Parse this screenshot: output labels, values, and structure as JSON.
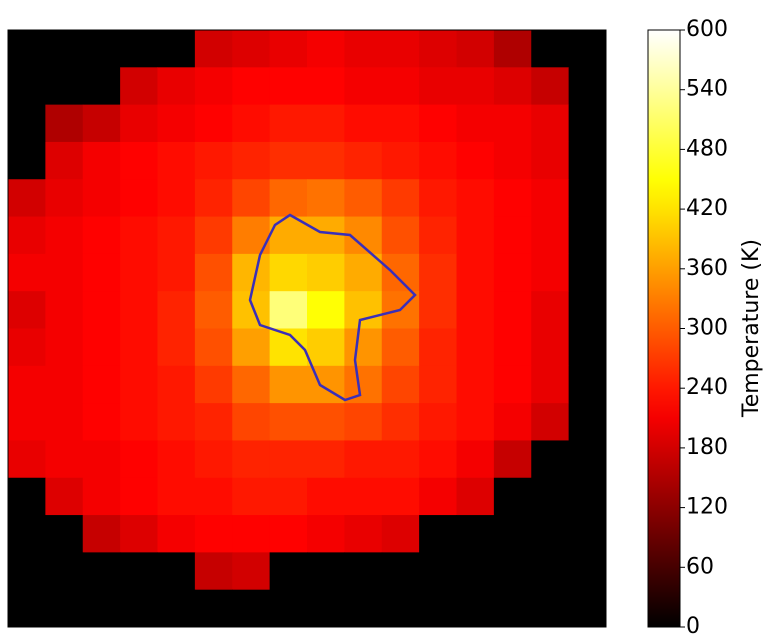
{
  "chart_data": {
    "type": "heatmap",
    "colormap": "hot",
    "colorbar_label": "Temperature (K)",
    "clim": [
      0,
      600
    ],
    "cticks": [
      0,
      60,
      120,
      180,
      240,
      300,
      360,
      420,
      480,
      540,
      600
    ],
    "z": [
      [
        0,
        0,
        0,
        0,
        0,
        180,
        190,
        200,
        210,
        200,
        200,
        190,
        180,
        150,
        0,
        0
      ],
      [
        0,
        0,
        0,
        180,
        200,
        210,
        220,
        220,
        220,
        210,
        210,
        200,
        200,
        190,
        170,
        0
      ],
      [
        0,
        150,
        170,
        200,
        210,
        220,
        230,
        240,
        240,
        230,
        230,
        220,
        210,
        210,
        200,
        0
      ],
      [
        0,
        190,
        210,
        220,
        230,
        240,
        250,
        260,
        260,
        250,
        240,
        230,
        220,
        210,
        200,
        0
      ],
      [
        180,
        200,
        210,
        220,
        230,
        250,
        280,
        310,
        320,
        300,
        270,
        240,
        230,
        220,
        210,
        0
      ],
      [
        200,
        210,
        220,
        230,
        240,
        270,
        330,
        370,
        370,
        340,
        290,
        250,
        230,
        220,
        210,
        0
      ],
      [
        210,
        210,
        220,
        230,
        240,
        290,
        380,
        410,
        400,
        370,
        310,
        260,
        230,
        220,
        210,
        0
      ],
      [
        190,
        210,
        220,
        230,
        250,
        300,
        390,
        520,
        450,
        390,
        320,
        260,
        230,
        220,
        200,
        0
      ],
      [
        200,
        210,
        220,
        230,
        250,
        290,
        360,
        420,
        400,
        350,
        300,
        250,
        230,
        220,
        200,
        0
      ],
      [
        210,
        210,
        220,
        230,
        240,
        270,
        310,
        350,
        350,
        320,
        280,
        250,
        230,
        220,
        200,
        0
      ],
      [
        210,
        210,
        220,
        230,
        240,
        250,
        280,
        290,
        290,
        280,
        260,
        240,
        230,
        210,
        180,
        0
      ],
      [
        200,
        210,
        210,
        220,
        230,
        240,
        250,
        250,
        250,
        240,
        240,
        230,
        210,
        170,
        0,
        0
      ],
      [
        0,
        190,
        210,
        220,
        230,
        230,
        240,
        240,
        230,
        230,
        230,
        210,
        190,
        0,
        0,
        0
      ],
      [
        0,
        0,
        170,
        190,
        210,
        220,
        220,
        220,
        210,
        200,
        190,
        0,
        0,
        0,
        0,
        0
      ],
      [
        0,
        0,
        0,
        0,
        0,
        170,
        180,
        0,
        0,
        0,
        0,
        0,
        0,
        0,
        0,
        0
      ],
      [
        0,
        0,
        0,
        0,
        0,
        0,
        0,
        0,
        0,
        0,
        0,
        0,
        0,
        0,
        0,
        0
      ]
    ]
  }
}
